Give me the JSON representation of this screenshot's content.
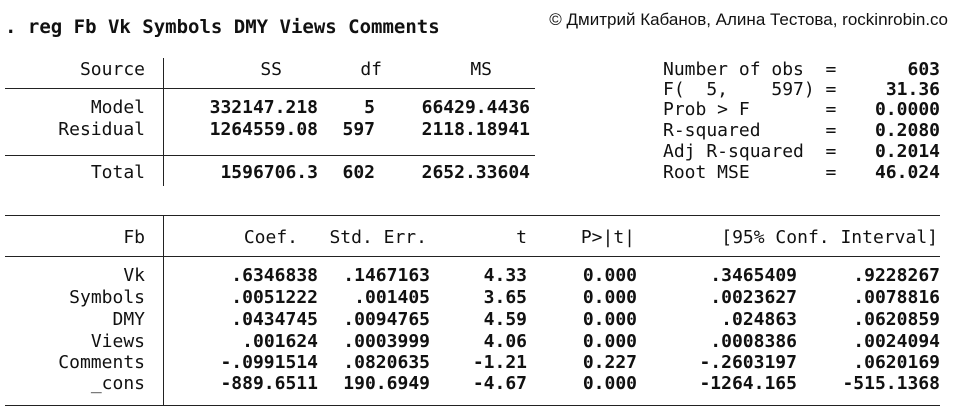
{
  "command": ". reg Fb Vk Symbols DMY Views Comments",
  "copyright": "© Дмитрий Кабанов, Алина Тестова, rockinrobin.co",
  "anova": {
    "header": [
      "Source",
      "SS",
      "df",
      "MS"
    ],
    "rows": [
      [
        "Model",
        "332147.218",
        "5",
        "66429.4436"
      ],
      [
        "Residual",
        "1264559.08",
        "597",
        "2118.18941"
      ]
    ],
    "total": [
      "Total",
      "1596706.3",
      "602",
      "2652.33604"
    ]
  },
  "stats": [
    {
      "label": "Number of obs  =",
      "value": "603"
    },
    {
      "label": "F(  5,    597) =",
      "value": "31.36"
    },
    {
      "label": "Prob > F       =",
      "value": "0.0000"
    },
    {
      "label": "R-squared      =",
      "value": "0.2080"
    },
    {
      "label": "Adj R-squared  =",
      "value": "0.2014"
    },
    {
      "label": "Root MSE       =",
      "value": "46.024"
    }
  ],
  "coef_table": {
    "header": [
      "Fb",
      "Coef.",
      "Std. Err.",
      "t",
      "P>|t|",
      "[95% Conf. Interval]"
    ],
    "rows": [
      [
        "Vk",
        ".6346838",
        ".1467163",
        "4.33",
        "0.000",
        ".3465409",
        ".9228267"
      ],
      [
        "Symbols",
        ".0051222",
        ".001405",
        "3.65",
        "0.000",
        ".0023627",
        ".0078816"
      ],
      [
        "DMY",
        ".0434745",
        ".0094765",
        "4.59",
        "0.000",
        ".024863",
        ".0620859"
      ],
      [
        "Views",
        ".001624",
        ".0003999",
        "4.06",
        "0.000",
        ".0008386",
        ".0024094"
      ],
      [
        "Comments",
        "-.0991514",
        ".0820635",
        "-1.21",
        "0.227",
        "-.2603197",
        ".0620169"
      ],
      [
        "_cons",
        "-889.6511",
        "190.6949",
        "-4.67",
        "0.000",
        "-1264.165",
        "-515.1368"
      ]
    ]
  }
}
